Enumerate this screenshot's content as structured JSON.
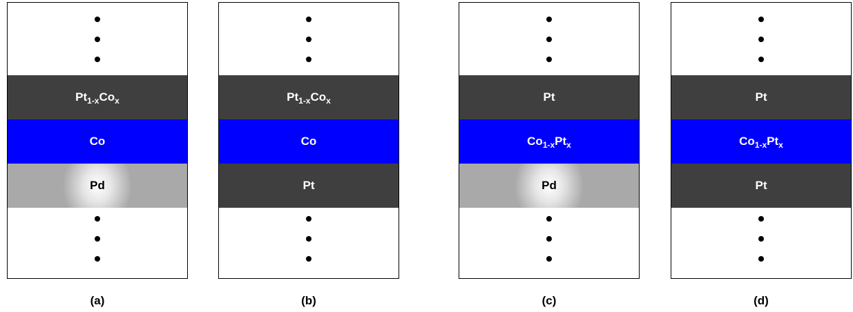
{
  "colors": {
    "dark": "#3f3f3f",
    "blue": "#0000ff",
    "pd_gray": "#a9a9a9",
    "dots": "#000000"
  },
  "stacks": [
    {
      "caption": "(a)",
      "layers": [
        {
          "el1": "Pt",
          "sub1": "1-x",
          "el2": "Co",
          "sub2": "x"
        },
        {
          "el1": "Co"
        },
        {
          "el1": "Pd"
        }
      ]
    },
    {
      "caption": "(b)",
      "layers": [
        {
          "el1": "Pt",
          "sub1": "1-x",
          "el2": "Co",
          "sub2": "x"
        },
        {
          "el1": "Co"
        },
        {
          "el1": "Pt"
        }
      ]
    },
    {
      "caption": "(c)",
      "layers": [
        {
          "el1": "Pt"
        },
        {
          "el1": "Co",
          "sub1": "1-x",
          "el2": "Pt",
          "sub2": "x"
        },
        {
          "el1": "Pd"
        }
      ]
    },
    {
      "caption": "(d)",
      "layers": [
        {
          "el1": "Pt"
        },
        {
          "el1": "Co",
          "sub1": "1-x",
          "el2": "Pt",
          "sub2": "x"
        },
        {
          "el1": "Pt"
        }
      ]
    }
  ]
}
